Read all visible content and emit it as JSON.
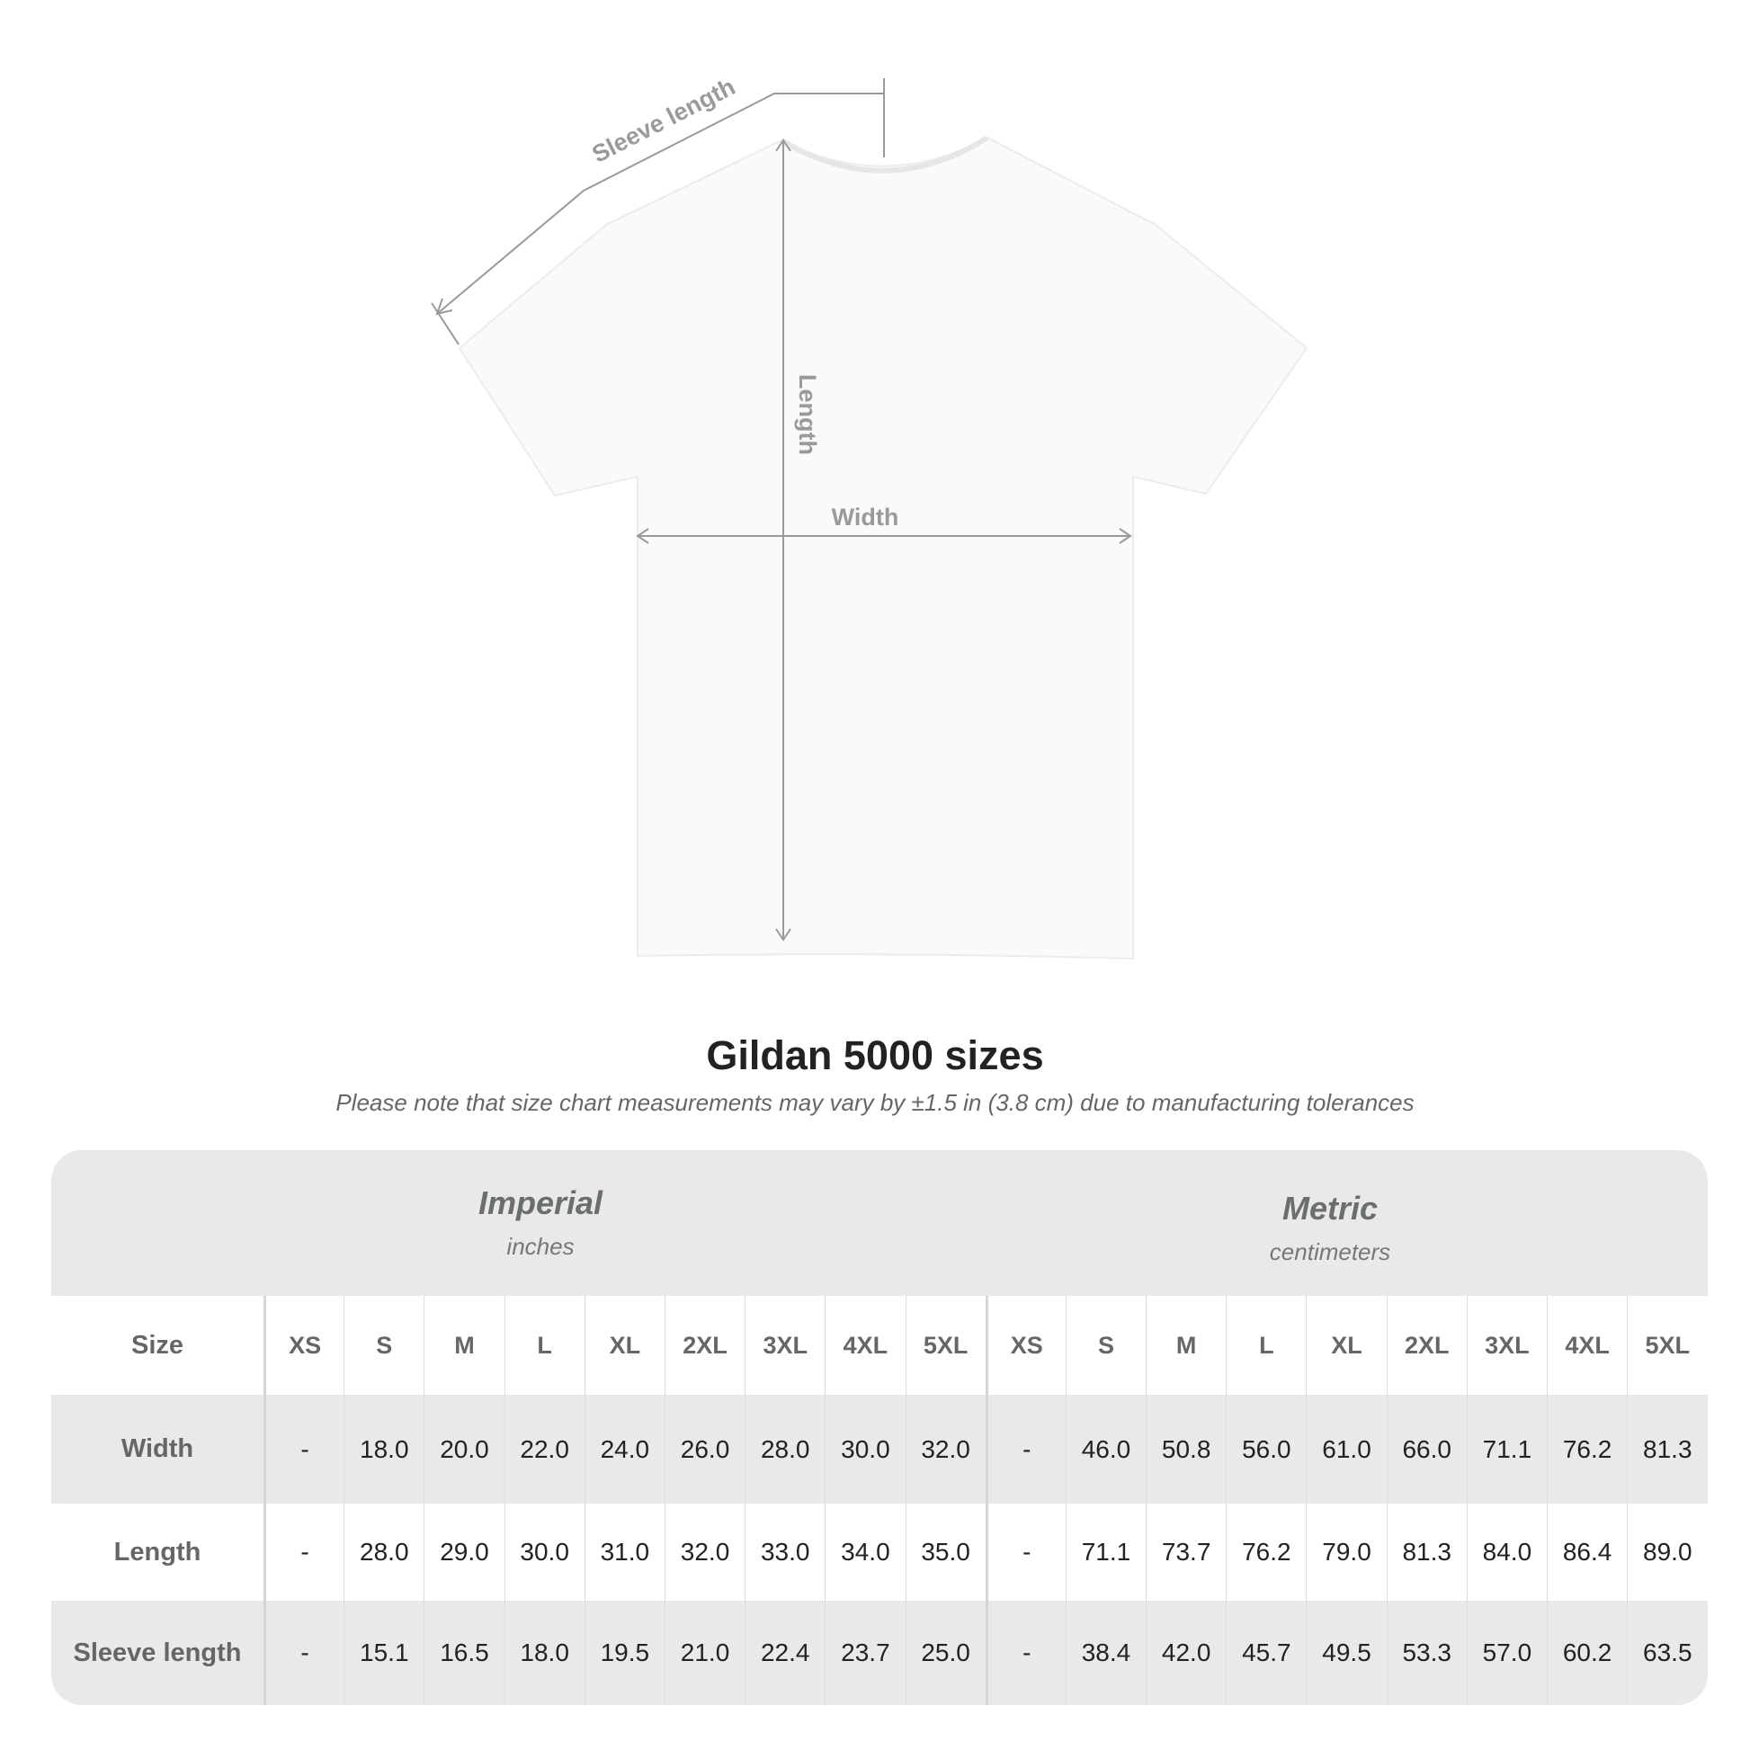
{
  "diagram": {
    "labels": {
      "sleeve_length": "Sleeve length",
      "length": "Length",
      "width": "Width"
    },
    "colors": {
      "shirt": "#fafafa",
      "measure_line": "#9a9a9a"
    }
  },
  "title": "Gildan 5000 sizes",
  "note": "Please note that size chart measurements may vary by ±1.5 in (3.8 cm) due to manufacturing tolerances",
  "table": {
    "imperial": {
      "title": "Imperial",
      "unit": "inches"
    },
    "metric": {
      "title": "Metric",
      "unit": "centimeters"
    },
    "size_label": "Size",
    "sizes": [
      "XS",
      "S",
      "M",
      "L",
      "XL",
      "2XL",
      "3XL",
      "4XL",
      "5XL"
    ],
    "rows": [
      {
        "label": "Width",
        "imperial": [
          "-",
          "18.0",
          "20.0",
          "22.0",
          "24.0",
          "26.0",
          "28.0",
          "30.0",
          "32.0"
        ],
        "metric": [
          "-",
          "46.0",
          "50.8",
          "56.0",
          "61.0",
          "66.0",
          "71.1",
          "76.2",
          "81.3"
        ]
      },
      {
        "label": "Length",
        "imperial": [
          "-",
          "28.0",
          "29.0",
          "30.0",
          "31.0",
          "32.0",
          "33.0",
          "34.0",
          "35.0"
        ],
        "metric": [
          "-",
          "71.1",
          "73.7",
          "76.2",
          "79.0",
          "81.3",
          "84.0",
          "86.4",
          "89.0"
        ]
      },
      {
        "label": "Sleeve length",
        "imperial": [
          "-",
          "15.1",
          "16.5",
          "18.0",
          "19.5",
          "21.0",
          "22.4",
          "23.7",
          "25.0"
        ],
        "metric": [
          "-",
          "38.4",
          "42.0",
          "45.7",
          "49.5",
          "53.3",
          "57.0",
          "60.2",
          "63.5"
        ]
      }
    ],
    "colors": {
      "band": "#e9e9e9",
      "header_text": "#666666",
      "value_text": "#222222"
    }
  }
}
